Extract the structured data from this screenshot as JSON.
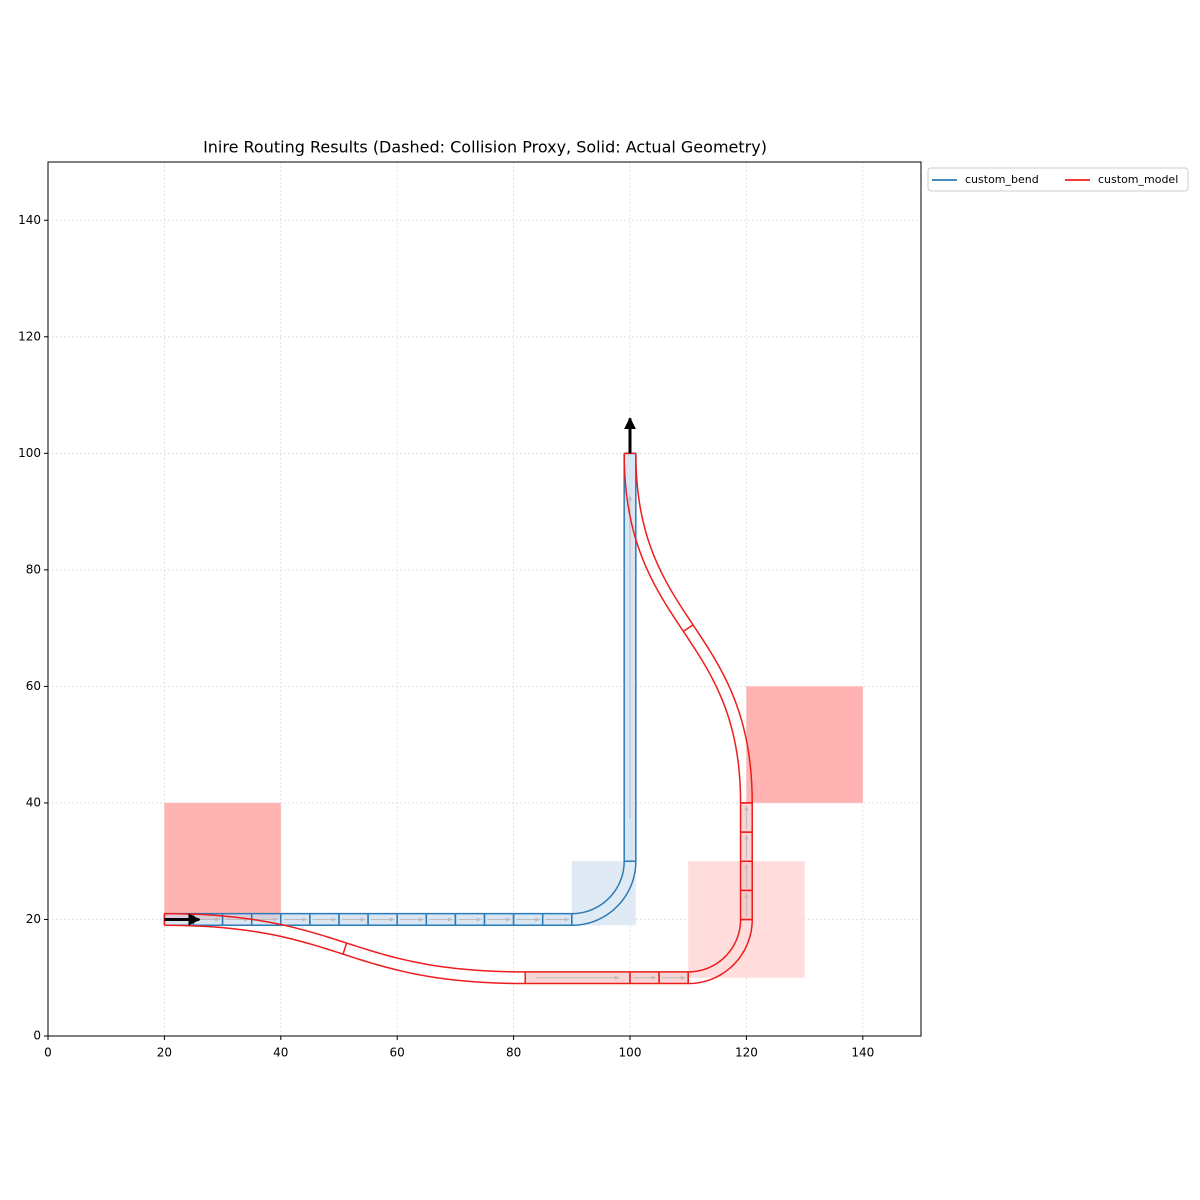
{
  "chart_data": {
    "type": "route",
    "title": "Inire Routing Results (Dashed: Collision Proxy, Solid: Actual Geometry)",
    "xlim": [
      0,
      150
    ],
    "ylim": [
      0,
      150
    ],
    "xticks": [
      0,
      20,
      40,
      60,
      80,
      100,
      120,
      140
    ],
    "yticks": [
      0,
      20,
      40,
      60,
      80,
      100,
      120,
      140
    ],
    "grid": true,
    "legend": "outside upper right",
    "obstacles": [
      {
        "x": [
          20,
          40
        ],
        "y": [
          20,
          40
        ],
        "color": "#ffb3b3"
      },
      {
        "x": [
          120,
          140
        ],
        "y": [
          40,
          60
        ],
        "color": "#ffb3b3"
      }
    ],
    "proxies": [
      {
        "x": [
          90,
          101
        ],
        "y": [
          19,
          30
        ],
        "color": "#dce8f3"
      },
      {
        "x": [
          110,
          130
        ],
        "y": [
          10,
          30
        ],
        "color": "#ffd9d9"
      }
    ],
    "series": [
      {
        "name": "custom_bend",
        "color": "#2c7bb6",
        "fill": "#c9dcee",
        "width": 2,
        "segments": [
          {
            "kind": "straight",
            "x": [
              20,
              25
            ],
            "y": [
              20,
              20
            ]
          },
          {
            "kind": "straight",
            "x": [
              25,
              30
            ],
            "y": [
              20,
              20
            ]
          },
          {
            "kind": "straight",
            "x": [
              30,
              35
            ],
            "y": [
              20,
              20
            ]
          },
          {
            "kind": "straight",
            "x": [
              35,
              40
            ],
            "y": [
              20,
              20
            ]
          },
          {
            "kind": "straight",
            "x": [
              40,
              45
            ],
            "y": [
              20,
              20
            ]
          },
          {
            "kind": "straight",
            "x": [
              45,
              50
            ],
            "y": [
              20,
              20
            ]
          },
          {
            "kind": "straight",
            "x": [
              50,
              55
            ],
            "y": [
              20,
              20
            ]
          },
          {
            "kind": "straight",
            "x": [
              55,
              60
            ],
            "y": [
              20,
              20
            ]
          },
          {
            "kind": "straight",
            "x": [
              60,
              65
            ],
            "y": [
              20,
              20
            ]
          },
          {
            "kind": "straight",
            "x": [
              65,
              70
            ],
            "y": [
              20,
              20
            ]
          },
          {
            "kind": "straight",
            "x": [
              70,
              75
            ],
            "y": [
              20,
              20
            ]
          },
          {
            "kind": "straight",
            "x": [
              75,
              80
            ],
            "y": [
              20,
              20
            ]
          },
          {
            "kind": "straight",
            "x": [
              80,
              85
            ],
            "y": [
              20,
              20
            ]
          },
          {
            "kind": "straight",
            "x": [
              85,
              90
            ],
            "y": [
              20,
              20
            ]
          },
          {
            "kind": "bend",
            "x": [
              90,
              100
            ],
            "y": [
              20,
              30
            ]
          },
          {
            "kind": "straight",
            "x": [
              100,
              100
            ],
            "y": [
              30,
              100
            ]
          }
        ]
      },
      {
        "name": "custom_model",
        "color": "#ee1c1c",
        "fill": "#f7c4c4",
        "width": 2,
        "segments": [
          {
            "kind": "sbend",
            "x": [
              20,
              82
            ],
            "y": [
              20,
              10
            ]
          },
          {
            "kind": "straight",
            "x": [
              82,
              100
            ],
            "y": [
              10,
              10
            ]
          },
          {
            "kind": "straight",
            "x": [
              100,
              105
            ],
            "y": [
              10,
              10
            ]
          },
          {
            "kind": "straight",
            "x": [
              105,
              110
            ],
            "y": [
              10,
              10
            ]
          },
          {
            "kind": "bend",
            "x": [
              110,
              120
            ],
            "y": [
              10,
              20
            ]
          },
          {
            "kind": "straight",
            "x": [
              120,
              120
            ],
            "y": [
              20,
              25
            ]
          },
          {
            "kind": "straight",
            "x": [
              120,
              120
            ],
            "y": [
              25,
              30
            ]
          },
          {
            "kind": "straight",
            "x": [
              120,
              120
            ],
            "y": [
              30,
              35
            ]
          },
          {
            "kind": "straight",
            "x": [
              120,
              120
            ],
            "y": [
              35,
              40
            ]
          },
          {
            "kind": "sbend",
            "x": [
              120,
              100
            ],
            "y": [
              40,
              100
            ]
          }
        ]
      }
    ],
    "arrows": [
      {
        "x": [
          20,
          26
        ],
        "y": [
          20,
          20
        ]
      },
      {
        "x": [
          100,
          100
        ],
        "y": [
          100,
          106
        ]
      }
    ]
  }
}
